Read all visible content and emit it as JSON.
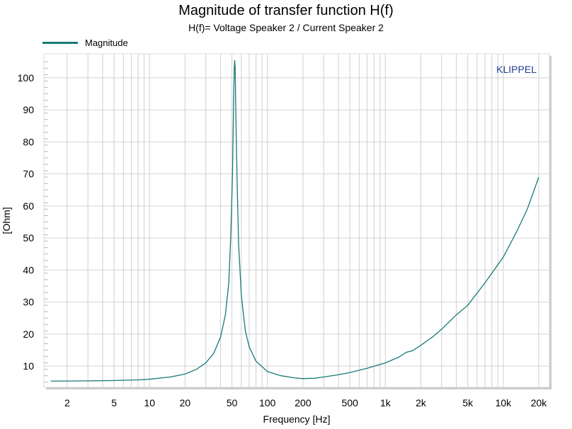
{
  "chart_data": {
    "type": "line",
    "title": "Magnitude of transfer function H(f)",
    "subtitle": "H(f)= Voltage Speaker 2 / Current Speaker 2",
    "xlabel": "Frequency [Hz]",
    "ylabel": "[Ohm]",
    "xscale": "log",
    "xlim": [
      1.27,
      24600
    ],
    "ylim": [
      3.4,
      107.5
    ],
    "grid": true,
    "legend_placement": "top-left",
    "watermark": "KLIPPEL",
    "x_ticks": [
      {
        "v": 2,
        "label": "2"
      },
      {
        "v": 5,
        "label": "5"
      },
      {
        "v": 10,
        "label": "10"
      },
      {
        "v": 20,
        "label": "20"
      },
      {
        "v": 50,
        "label": "50"
      },
      {
        "v": 100,
        "label": "100"
      },
      {
        "v": 200,
        "label": "200"
      },
      {
        "v": 500,
        "label": "500"
      },
      {
        "v": 1000,
        "label": "1k"
      },
      {
        "v": 2000,
        "label": "2k"
      },
      {
        "v": 5000,
        "label": "5k"
      },
      {
        "v": 10000,
        "label": "10k"
      },
      {
        "v": 20000,
        "label": "20k"
      }
    ],
    "y_ticks": [
      {
        "v": 10,
        "label": "10"
      },
      {
        "v": 20,
        "label": "20"
      },
      {
        "v": 30,
        "label": "30"
      },
      {
        "v": 40,
        "label": "40"
      },
      {
        "v": 50,
        "label": "50"
      },
      {
        "v": 60,
        "label": "60"
      },
      {
        "v": 70,
        "label": "70"
      },
      {
        "v": 80,
        "label": "80"
      },
      {
        "v": 90,
        "label": "90"
      },
      {
        "v": 100,
        "label": "100"
      }
    ],
    "series": [
      {
        "name": "Magnitude",
        "color": "#177a78",
        "x": [
          1.45,
          3,
          5,
          8,
          10,
          15,
          20,
          25,
          30,
          35,
          40,
          44,
          47,
          49,
          50.5,
          51.5,
          52.3,
          52.7,
          53.2,
          54,
          55.5,
          57,
          60,
          65,
          70,
          80,
          100,
          130,
          170,
          200,
          250,
          300,
          400,
          500,
          700,
          1000,
          1300,
          1500,
          1700,
          2000,
          2500,
          3000,
          4000,
          5000,
          7000,
          10000,
          13000,
          16000,
          20000
        ],
        "y": [
          5.3,
          5.4,
          5.5,
          5.7,
          5.9,
          6.6,
          7.5,
          9,
          11,
          14,
          19,
          26,
          36,
          52,
          70,
          90,
          103,
          105.5,
          103,
          88,
          65,
          48,
          32,
          21,
          16,
          11.5,
          8.3,
          7,
          6.3,
          6.1,
          6.2,
          6.6,
          7.3,
          8,
          9.3,
          11,
          12.8,
          14.3,
          14.8,
          16.5,
          19,
          21.5,
          26,
          29,
          36,
          44,
          52,
          59,
          69
        ]
      }
    ]
  }
}
